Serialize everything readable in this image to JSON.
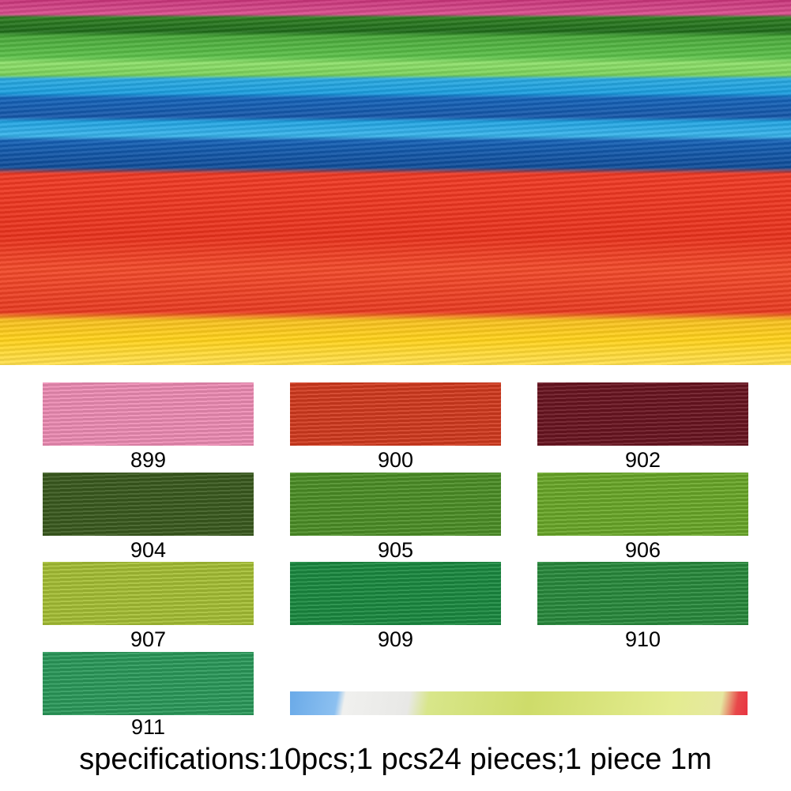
{
  "swatches": [
    {
      "code": "899",
      "color": "#ee8cb4"
    },
    {
      "code": "900",
      "color": "#d23a1e"
    },
    {
      "code": "902",
      "color": "#6a1420"
    },
    {
      "code": "904",
      "color": "#3a5a1e"
    },
    {
      "code": "905",
      "color": "#4c8e26"
    },
    {
      "code": "906",
      "color": "#6aa828"
    },
    {
      "code": "907",
      "color": "#a6c034"
    },
    {
      "code": "909",
      "color": "#1a8a40"
    },
    {
      "code": "910",
      "color": "#288a3c"
    },
    {
      "code": "911",
      "color": "#2a9a5a"
    }
  ],
  "specifications": "specifications:10pcs;1 pcs24 pieces;1 piece 1m"
}
